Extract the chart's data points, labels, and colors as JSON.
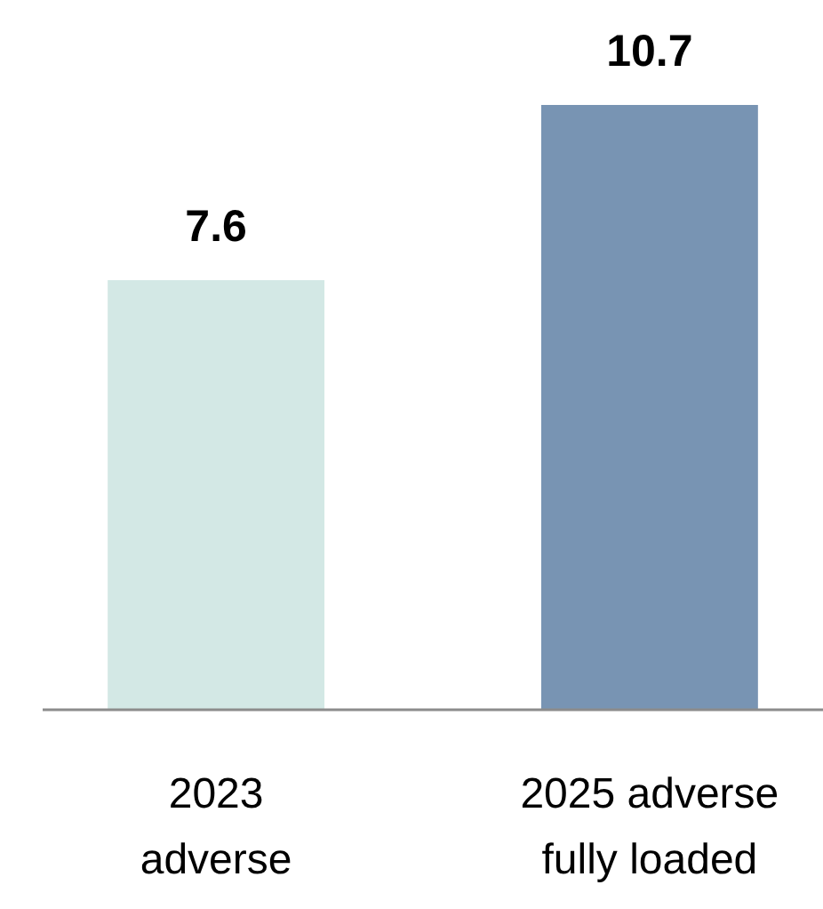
{
  "chart_data": {
    "type": "bar",
    "categories": [
      "2023 adverse",
      "2025 adverse fully loaded"
    ],
    "values": [
      7.6,
      10.7
    ],
    "colors": [
      "#d3e8e5",
      "#7894b3"
    ],
    "data_labels": true
  }
}
